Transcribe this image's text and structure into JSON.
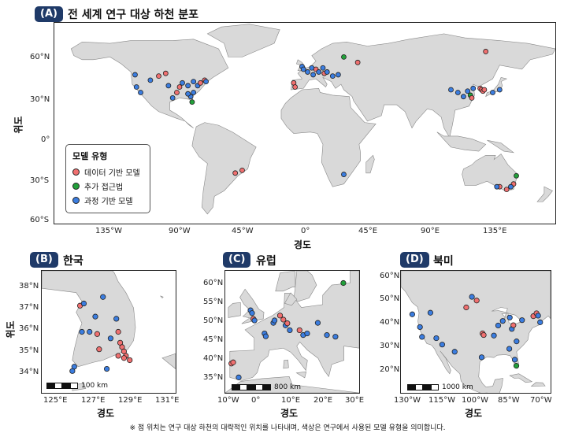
{
  "panelA": {
    "tag": "(A)",
    "title": "전 세계 연구 대상 하천 분포",
    "xlabel": "경도",
    "ylabel": "위도",
    "xticks": [
      "135°W",
      "90°W",
      "45°W",
      "0°",
      "45°E",
      "90°E",
      "135°E"
    ],
    "yticks": [
      "60°N",
      "30°N",
      "0°",
      "30°S",
      "60°S"
    ],
    "legend": {
      "title": "모델 유형",
      "items": [
        {
          "label": "데이터 기반 모델",
          "color": "#f07070"
        },
        {
          "label": "추가 접근법",
          "color": "#22a03a"
        },
        {
          "label": "과정 기반 모델",
          "color": "#3b7de0"
        }
      ]
    }
  },
  "panelB": {
    "tag": "(B)",
    "title": "한국",
    "xlabel": "경도",
    "ylabel": "위도",
    "xticks": [
      "125°E",
      "127°E",
      "129°E",
      "131°E"
    ],
    "yticks": [
      "38°N",
      "37°N",
      "36°N",
      "35°N",
      "34°N"
    ],
    "scale": "100 km"
  },
  "panelC": {
    "tag": "(C)",
    "title": "유럽",
    "xlabel": "경도",
    "xticks": [
      "10°W",
      "0°",
      "10°E",
      "20°E",
      "30°E"
    ],
    "yticks": [
      "60°N",
      "55°N",
      "50°N",
      "45°N",
      "40°N",
      "35°N"
    ],
    "scale": "800 km"
  },
  "panelD": {
    "tag": "(D)",
    "title": "북미",
    "xlabel": "경도",
    "xticks": [
      "130°W",
      "115°W",
      "100°W",
      "85°W",
      "70°W"
    ],
    "yticks": [
      "60°N",
      "50°N",
      "40°N",
      "30°N",
      "20°N"
    ],
    "scale": "1000 km"
  },
  "footnote": "※ 점 위치는 연구 대상 하천의 대략적인 위치를 나타내며, 색상은 연구에서 사용된 모델 유형을 의미합니다.",
  "colors": {
    "data": "#f07070",
    "additional": "#22a03a",
    "process": "#3b7de0",
    "land": "#d9d9d9",
    "border": "#888888",
    "ocean": "#ffffff"
  },
  "sites": {
    "world": [
      {
        "lon": -122,
        "lat": 47,
        "t": "p"
      },
      {
        "lon": -121,
        "lat": 38,
        "t": "p"
      },
      {
        "lon": -118,
        "lat": 34,
        "t": "p"
      },
      {
        "lon": -105,
        "lat": 46,
        "t": "d"
      },
      {
        "lon": -100,
        "lat": 48,
        "t": "d"
      },
      {
        "lon": -111,
        "lat": 43,
        "t": "p"
      },
      {
        "lon": -98,
        "lat": 39,
        "t": "p"
      },
      {
        "lon": -90,
        "lat": 38,
        "t": "d"
      },
      {
        "lon": -92,
        "lat": 34,
        "t": "d"
      },
      {
        "lon": -88,
        "lat": 41,
        "t": "p"
      },
      {
        "lon": -84,
        "lat": 39,
        "t": "p"
      },
      {
        "lon": -80,
        "lat": 42,
        "t": "p"
      },
      {
        "lon": -77,
        "lat": 39,
        "t": "p"
      },
      {
        "lon": -75,
        "lat": 41,
        "t": "d"
      },
      {
        "lon": -72,
        "lat": 43,
        "t": "d"
      },
      {
        "lon": -71,
        "lat": 42,
        "t": "p"
      },
      {
        "lon": -80,
        "lat": 34,
        "t": "p"
      },
      {
        "lon": -82,
        "lat": 31,
        "t": "p"
      },
      {
        "lon": -84,
        "lat": 33,
        "t": "p"
      },
      {
        "lon": -81,
        "lat": 27,
        "t": "a"
      },
      {
        "lon": -95,
        "lat": 30,
        "t": "p"
      },
      {
        "lon": -45,
        "lat": -23,
        "t": "d"
      },
      {
        "lon": -50,
        "lat": -25,
        "t": "d"
      },
      {
        "lon": 28,
        "lat": -26,
        "t": "p"
      },
      {
        "lon": -8,
        "lat": 41,
        "t": "d"
      },
      {
        "lon": -7,
        "lat": 38,
        "t": "d"
      },
      {
        "lon": -2,
        "lat": 53,
        "t": "p"
      },
      {
        "lon": -1,
        "lat": 51,
        "t": "p"
      },
      {
        "lon": 2,
        "lat": 49,
        "t": "p"
      },
      {
        "lon": 5,
        "lat": 52,
        "t": "p"
      },
      {
        "lon": 6,
        "lat": 47,
        "t": "p"
      },
      {
        "lon": 8,
        "lat": 51,
        "t": "d"
      },
      {
        "lon": 10,
        "lat": 49,
        "t": "p"
      },
      {
        "lon": 13,
        "lat": 52,
        "t": "p"
      },
      {
        "lon": 14,
        "lat": 48,
        "t": "d"
      },
      {
        "lon": 16,
        "lat": 49,
        "t": "p"
      },
      {
        "lon": 20,
        "lat": 46,
        "t": "p"
      },
      {
        "lon": 24,
        "lat": 47,
        "t": "p"
      },
      {
        "lon": 28,
        "lat": 60,
        "t": "a"
      },
      {
        "lon": 38,
        "lat": 56,
        "t": "d"
      },
      {
        "lon": 105,
        "lat": 36,
        "t": "p"
      },
      {
        "lon": 110,
        "lat": 34,
        "t": "p"
      },
      {
        "lon": 114,
        "lat": 31,
        "t": "p"
      },
      {
        "lon": 117,
        "lat": 35,
        "t": "p"
      },
      {
        "lon": 119,
        "lat": 32,
        "t": "a"
      },
      {
        "lon": 120,
        "lat": 30,
        "t": "d"
      },
      {
        "lon": 121,
        "lat": 37,
        "t": "p"
      },
      {
        "lon": 126,
        "lat": 37,
        "t": "d"
      },
      {
        "lon": 127,
        "lat": 36,
        "t": "d"
      },
      {
        "lon": 128,
        "lat": 35,
        "t": "d"
      },
      {
        "lon": 129,
        "lat": 36,
        "t": "d"
      },
      {
        "lon": 135,
        "lat": 34,
        "t": "p"
      },
      {
        "lon": 140,
        "lat": 36,
        "t": "p"
      },
      {
        "lon": 130,
        "lat": 64,
        "t": "d"
      },
      {
        "lon": 140,
        "lat": -35,
        "t": "d"
      },
      {
        "lon": 145,
        "lat": -37,
        "t": "d"
      },
      {
        "lon": 150,
        "lat": -33,
        "t": "d"
      },
      {
        "lon": 152,
        "lat": -27,
        "t": "a"
      },
      {
        "lon": 138,
        "lat": -35,
        "t": "p"
      },
      {
        "lon": 148,
        "lat": -35,
        "t": "p"
      }
    ],
    "korea": [
      {
        "lon": 126.6,
        "lat": 37.1,
        "t": "d"
      },
      {
        "lon": 126.8,
        "lat": 37.2,
        "t": "p"
      },
      {
        "lon": 127.8,
        "lat": 37.5,
        "t": "p"
      },
      {
        "lon": 127.4,
        "lat": 36.6,
        "t": "p"
      },
      {
        "lon": 128.5,
        "lat": 36.5,
        "t": "p"
      },
      {
        "lon": 126.7,
        "lat": 35.9,
        "t": "p"
      },
      {
        "lon": 127.1,
        "lat": 35.9,
        "t": "p"
      },
      {
        "lon": 127.5,
        "lat": 35.8,
        "t": "d"
      },
      {
        "lon": 128.2,
        "lat": 35.6,
        "t": "p"
      },
      {
        "lon": 128.6,
        "lat": 35.9,
        "t": "d"
      },
      {
        "lon": 128.7,
        "lat": 35.4,
        "t": "d"
      },
      {
        "lon": 128.8,
        "lat": 35.2,
        "t": "d"
      },
      {
        "lon": 128.9,
        "lat": 35.0,
        "t": "d"
      },
      {
        "lon": 129.0,
        "lat": 34.8,
        "t": "d"
      },
      {
        "lon": 129.2,
        "lat": 34.6,
        "t": "d"
      },
      {
        "lon": 128.6,
        "lat": 34.8,
        "t": "d"
      },
      {
        "lon": 127.6,
        "lat": 35.1,
        "t": "d"
      },
      {
        "lon": 128.0,
        "lat": 34.2,
        "t": "p"
      },
      {
        "lon": 126.3,
        "lat": 34.3,
        "t": "p"
      },
      {
        "lon": 126.2,
        "lat": 34.1,
        "t": "p"
      },
      {
        "lon": 128.9,
        "lat": 34.7,
        "t": "d"
      }
    ],
    "europe": [
      {
        "lon": -9,
        "lat": 40.2,
        "t": "d"
      },
      {
        "lon": -8.4,
        "lat": 40.5,
        "t": "d"
      },
      {
        "lon": -6.6,
        "lat": 36.8,
        "t": "p"
      },
      {
        "lon": -2.7,
        "lat": 53.3,
        "t": "p"
      },
      {
        "lon": -2.2,
        "lat": 52.6,
        "t": "p"
      },
      {
        "lon": -1.8,
        "lat": 51.2,
        "t": "d"
      },
      {
        "lon": -1.4,
        "lat": 50.8,
        "t": "p"
      },
      {
        "lon": 1.9,
        "lat": 47.6,
        "t": "p"
      },
      {
        "lon": 2.3,
        "lat": 46.9,
        "t": "p"
      },
      {
        "lon": 4.8,
        "lat": 50.2,
        "t": "p"
      },
      {
        "lon": 5.2,
        "lat": 50.8,
        "t": "p"
      },
      {
        "lon": 7.0,
        "lat": 52.0,
        "t": "d"
      },
      {
        "lon": 8.1,
        "lat": 51.0,
        "t": "d"
      },
      {
        "lon": 8.8,
        "lat": 49.6,
        "t": "p"
      },
      {
        "lon": 9.4,
        "lat": 50.1,
        "t": "d"
      },
      {
        "lon": 10.2,
        "lat": 48.4,
        "t": "p"
      },
      {
        "lon": 13.4,
        "lat": 48.4,
        "t": "d"
      },
      {
        "lon": 14.6,
        "lat": 47.2,
        "t": "p"
      },
      {
        "lon": 15.9,
        "lat": 47.6,
        "t": "p"
      },
      {
        "lon": 19.4,
        "lat": 50.2,
        "t": "p"
      },
      {
        "lon": 22.4,
        "lat": 47.2,
        "t": "p"
      },
      {
        "lon": 25.2,
        "lat": 46.8,
        "t": "p"
      },
      {
        "lon": 27.8,
        "lat": 60.0,
        "t": "a"
      }
    ],
    "namerica": [
      {
        "lon": -127,
        "lat": 45.6,
        "t": "p"
      },
      {
        "lon": -123.6,
        "lat": 40.8,
        "t": "p"
      },
      {
        "lon": -122.7,
        "lat": 37.1,
        "t": "p"
      },
      {
        "lon": -119,
        "lat": 46.2,
        "t": "p"
      },
      {
        "lon": -113.8,
        "lat": 34.2,
        "t": "p"
      },
      {
        "lon": -103.2,
        "lat": 48.2,
        "t": "d"
      },
      {
        "lon": -100.7,
        "lat": 52.2,
        "t": "p"
      },
      {
        "lon": -98.6,
        "lat": 50.8,
        "t": "d"
      },
      {
        "lon": -96,
        "lat": 38.4,
        "t": "d"
      },
      {
        "lon": -95.5,
        "lat": 37.8,
        "t": "d"
      },
      {
        "lon": -91,
        "lat": 37.6,
        "t": "p"
      },
      {
        "lon": -89.1,
        "lat": 41.4,
        "t": "p"
      },
      {
        "lon": -87.1,
        "lat": 43.1,
        "t": "p"
      },
      {
        "lon": -83.1,
        "lat": 40.1,
        "t": "p"
      },
      {
        "lon": -82.4,
        "lat": 41.5,
        "t": "d"
      },
      {
        "lon": -84,
        "lat": 44.4,
        "t": "p"
      },
      {
        "lon": -78.6,
        "lat": 43.4,
        "t": "p"
      },
      {
        "lon": -73.6,
        "lat": 44.9,
        "t": "d"
      },
      {
        "lon": -72.2,
        "lat": 46.0,
        "t": "d"
      },
      {
        "lon": -71.5,
        "lat": 45.1,
        "t": "p"
      },
      {
        "lon": -70.6,
        "lat": 42.6,
        "t": "p"
      },
      {
        "lon": -81,
        "lat": 35.4,
        "t": "p"
      },
      {
        "lon": -84.2,
        "lat": 32.6,
        "t": "p"
      },
      {
        "lon": -81.8,
        "lat": 28.5,
        "t": "p"
      },
      {
        "lon": -81.1,
        "lat": 26.2,
        "t": "a"
      },
      {
        "lon": -96.4,
        "lat": 29.4,
        "t": "p"
      },
      {
        "lon": -108.3,
        "lat": 31.5,
        "t": "p"
      },
      {
        "lon": -116.4,
        "lat": 36.6,
        "t": "p"
      }
    ]
  }
}
